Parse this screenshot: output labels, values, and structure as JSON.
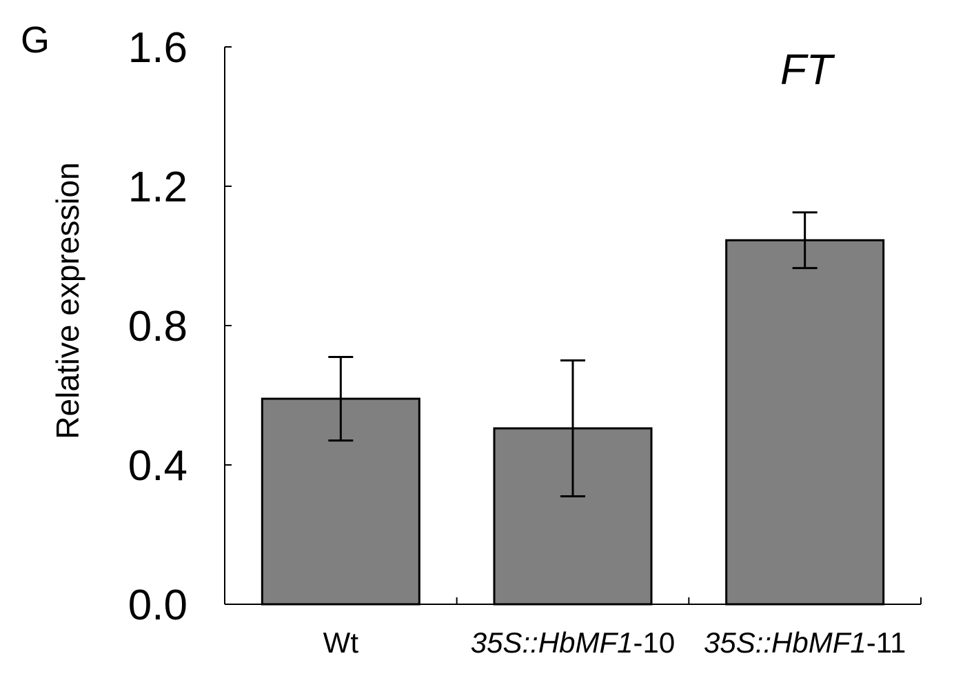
{
  "panel_label": "G",
  "chart_data": {
    "type": "bar",
    "title": "FT",
    "ylabel": "Relative expression",
    "xlabel": "",
    "ylim": [
      0,
      1.6
    ],
    "yticks": [
      "0.0",
      "0.4",
      "0.8",
      "1.2",
      "1.6"
    ],
    "categories": [
      {
        "italic": "35S::HbMF1",
        "plain": "",
        "full": "Wt"
      },
      {
        "italic": "35S::HbMF1",
        "plain": "-10",
        "full": "35S::HbMF1-10"
      },
      {
        "italic": "35S::HbMF1",
        "plain": "-11",
        "full": "35S::HbMF1-11"
      }
    ],
    "values": [
      0.59,
      0.505,
      1.045
    ],
    "errors": [
      0.12,
      0.195,
      0.08
    ],
    "bar_color": "#808080",
    "grid": false
  }
}
